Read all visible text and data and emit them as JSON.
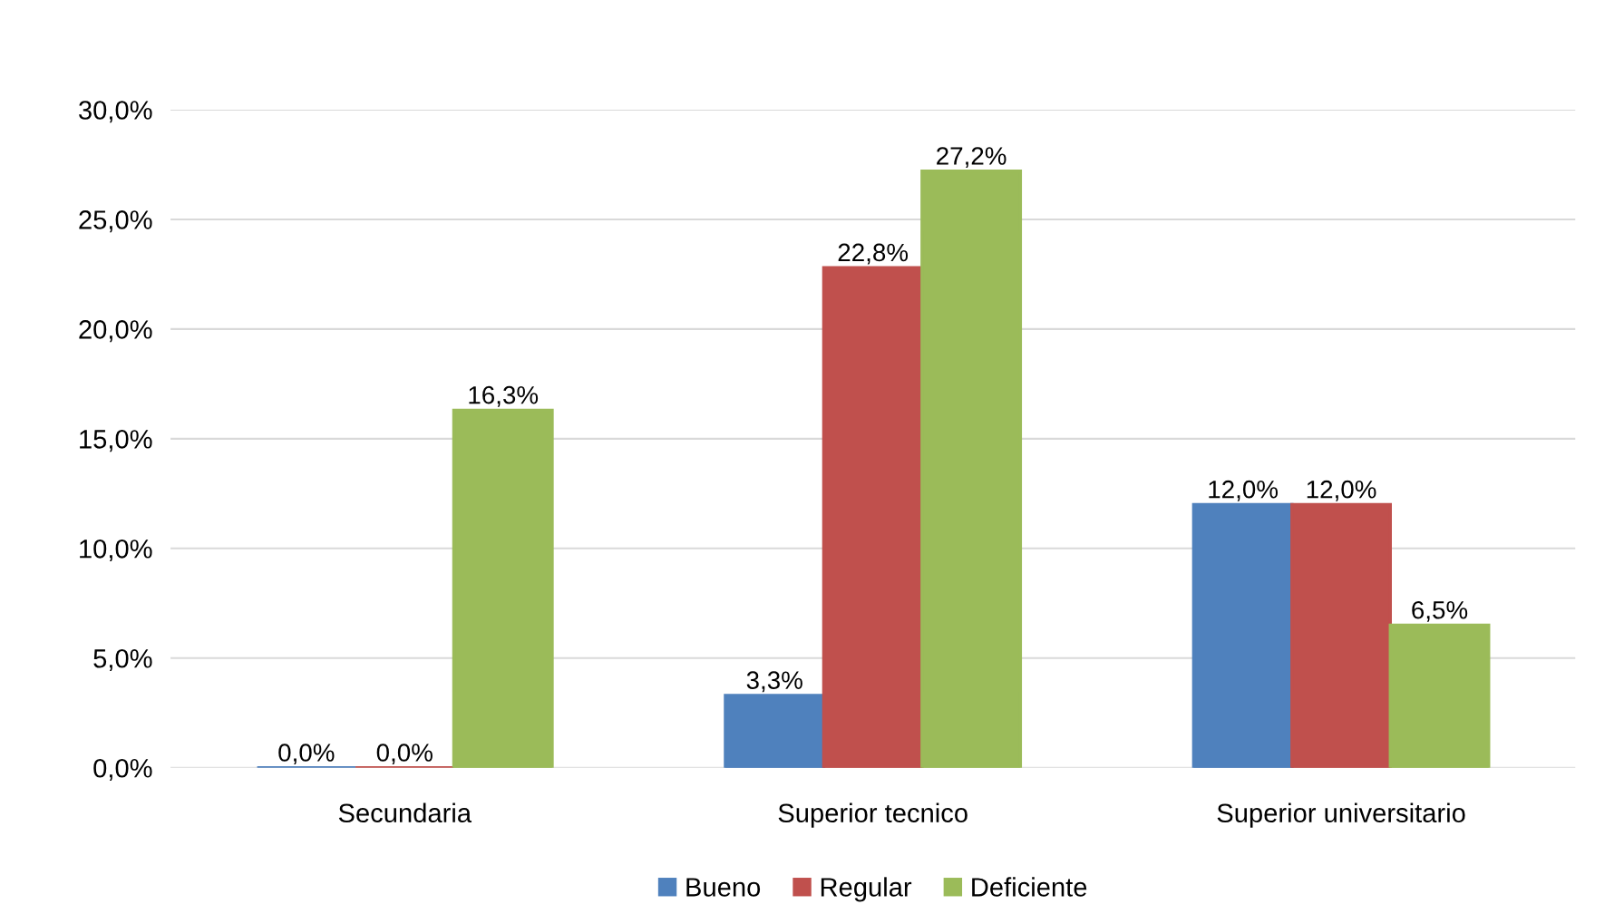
{
  "chart_data": {
    "type": "bar",
    "categories": [
      "Secundaria",
      "Superior tecnico",
      "Superior universitario"
    ],
    "series": [
      {
        "name": "Bueno",
        "color": "#4f81bd",
        "values": [
          0.0,
          3.3,
          12.0
        ],
        "value_labels": [
          "0,0%",
          "3,3%",
          "12,0%"
        ]
      },
      {
        "name": "Regular",
        "color": "#c0504d",
        "values": [
          0.0,
          22.8,
          12.0
        ],
        "value_labels": [
          "0,0%",
          "22,8%",
          "12,0%"
        ]
      },
      {
        "name": "Deficiente",
        "color": "#9bbb59",
        "values": [
          16.3,
          27.2,
          6.5
        ],
        "value_labels": [
          "16,3%",
          "27,2%",
          "6,5%"
        ]
      }
    ],
    "ylim": [
      0,
      30
    ],
    "yticks": [
      {
        "value": 0,
        "label": "0,0%"
      },
      {
        "value": 5,
        "label": "5,0%"
      },
      {
        "value": 10,
        "label": "10,0%"
      },
      {
        "value": 15,
        "label": "15,0%"
      },
      {
        "value": 20,
        "label": "20,0%"
      },
      {
        "value": 25,
        "label": "25,0%"
      },
      {
        "value": 30,
        "label": "30,0%"
      }
    ],
    "grid": "y",
    "legend": "bottom"
  }
}
